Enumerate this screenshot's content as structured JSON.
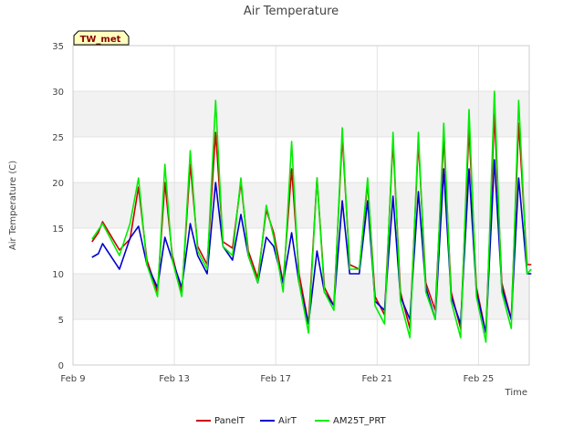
{
  "chart_data": {
    "type": "line",
    "title": "Air Temperature",
    "badge": "TW_met",
    "xlabel": "Time",
    "ylabel": "Air Temperature (C)",
    "ylim": [
      0,
      35
    ],
    "yticks": [
      0,
      5,
      10,
      15,
      20,
      25,
      30,
      35
    ],
    "xlim": [
      "2024-02-09",
      "2024-02-27"
    ],
    "xticks": [
      {
        "date": "2024-02-09",
        "label": "Feb 9"
      },
      {
        "date": "2024-02-13",
        "label": "Feb 13"
      },
      {
        "date": "2024-02-17",
        "label": "Feb 17"
      },
      {
        "date": "2024-02-21",
        "label": "Feb 21"
      },
      {
        "date": "2024-02-25",
        "label": "Feb 25"
      }
    ],
    "grid": true,
    "legend_position": "bottom",
    "series": [
      {
        "name": "PanelT",
        "color": "#cc0000",
        "points": [
          [
            "2024-02-09T18:00",
            13.5
          ],
          [
            "2024-02-10T00:00",
            14.5
          ],
          [
            "2024-02-10T04:00",
            15.7
          ],
          [
            "2024-02-10T20:00",
            12.6
          ],
          [
            "2024-02-11T06:00",
            13.8
          ],
          [
            "2024-02-11T14:00",
            19.5
          ],
          [
            "2024-02-11T22:00",
            11.5
          ],
          [
            "2024-02-12T08:00",
            8.0
          ],
          [
            "2024-02-12T15:00",
            20.0
          ],
          [
            "2024-02-12T22:00",
            12.0
          ],
          [
            "2024-02-13T07:00",
            7.8
          ],
          [
            "2024-02-13T15:00",
            22.0
          ],
          [
            "2024-02-13T22:00",
            13.0
          ],
          [
            "2024-02-14T07:00",
            11.0
          ],
          [
            "2024-02-14T15:00",
            25.5
          ],
          [
            "2024-02-14T22:00",
            13.5
          ],
          [
            "2024-02-15T07:00",
            12.8
          ],
          [
            "2024-02-15T15:00",
            20.0
          ],
          [
            "2024-02-15T22:00",
            12.5
          ],
          [
            "2024-02-16T07:00",
            9.5
          ],
          [
            "2024-02-16T15:00",
            17.0
          ],
          [
            "2024-02-16T22:00",
            14.5
          ],
          [
            "2024-02-17T07:00",
            9.0
          ],
          [
            "2024-02-17T15:00",
            21.5
          ],
          [
            "2024-02-17T22:00",
            10.0
          ],
          [
            "2024-02-18T07:00",
            4.5
          ],
          [
            "2024-02-18T15:00",
            20.5
          ],
          [
            "2024-02-18T22:00",
            8.5
          ],
          [
            "2024-02-19T07:00",
            6.5
          ],
          [
            "2024-02-19T15:00",
            25.0
          ],
          [
            "2024-02-19T22:00",
            11.0
          ],
          [
            "2024-02-20T07:00",
            10.5
          ],
          [
            "2024-02-20T15:00",
            20.0
          ],
          [
            "2024-02-20T22:00",
            7.5
          ],
          [
            "2024-02-21T07:00",
            5.5
          ],
          [
            "2024-02-21T15:00",
            24.5
          ],
          [
            "2024-02-21T22:00",
            8.0
          ],
          [
            "2024-02-22T07:00",
            4.0
          ],
          [
            "2024-02-22T15:00",
            24.5
          ],
          [
            "2024-02-22T22:00",
            9.0
          ],
          [
            "2024-02-23T07:00",
            6.0
          ],
          [
            "2024-02-23T15:00",
            25.0
          ],
          [
            "2024-02-23T22:00",
            8.0
          ],
          [
            "2024-02-24T07:00",
            4.0
          ],
          [
            "2024-02-24T15:00",
            26.0
          ],
          [
            "2024-02-24T22:00",
            8.5
          ],
          [
            "2024-02-25T07:00",
            3.5
          ],
          [
            "2024-02-25T15:00",
            27.5
          ],
          [
            "2024-02-25T22:00",
            9.0
          ],
          [
            "2024-02-26T07:00",
            5.0
          ],
          [
            "2024-02-26T14:00",
            26.5
          ],
          [
            "2024-02-26T22:00",
            11.0
          ],
          [
            "2024-02-27T02:00",
            11.0
          ]
        ]
      },
      {
        "name": "AirT",
        "color": "#0000cc",
        "points": [
          [
            "2024-02-09T18:00",
            11.8
          ],
          [
            "2024-02-10T00:00",
            12.2
          ],
          [
            "2024-02-10T04:00",
            13.3
          ],
          [
            "2024-02-10T20:00",
            10.5
          ],
          [
            "2024-02-11T06:00",
            13.9
          ],
          [
            "2024-02-11T14:00",
            15.2
          ],
          [
            "2024-02-11T22:00",
            11.0
          ],
          [
            "2024-02-12T08:00",
            8.5
          ],
          [
            "2024-02-12T15:00",
            14.0
          ],
          [
            "2024-02-12T22:00",
            11.5
          ],
          [
            "2024-02-13T07:00",
            8.5
          ],
          [
            "2024-02-13T15:00",
            15.5
          ],
          [
            "2024-02-13T22:00",
            12.0
          ],
          [
            "2024-02-14T07:00",
            10.0
          ],
          [
            "2024-02-14T15:00",
            20.0
          ],
          [
            "2024-02-14T22:00",
            13.0
          ],
          [
            "2024-02-15T07:00",
            11.5
          ],
          [
            "2024-02-15T15:00",
            16.5
          ],
          [
            "2024-02-15T22:00",
            12.0
          ],
          [
            "2024-02-16T07:00",
            9.0
          ],
          [
            "2024-02-16T15:00",
            14.0
          ],
          [
            "2024-02-16T22:00",
            13.0
          ],
          [
            "2024-02-17T07:00",
            9.0
          ],
          [
            "2024-02-17T15:00",
            14.5
          ],
          [
            "2024-02-17T22:00",
            9.0
          ],
          [
            "2024-02-18T07:00",
            4.5
          ],
          [
            "2024-02-18T15:00",
            12.5
          ],
          [
            "2024-02-18T22:00",
            8.0
          ],
          [
            "2024-02-19T07:00",
            6.5
          ],
          [
            "2024-02-19T15:00",
            18.0
          ],
          [
            "2024-02-19T22:00",
            10.0
          ],
          [
            "2024-02-20T07:00",
            10.0
          ],
          [
            "2024-02-20T15:00",
            18.0
          ],
          [
            "2024-02-20T22:00",
            7.0
          ],
          [
            "2024-02-21T07:00",
            6.0
          ],
          [
            "2024-02-21T15:00",
            18.5
          ],
          [
            "2024-02-21T22:00",
            7.5
          ],
          [
            "2024-02-22T07:00",
            5.0
          ],
          [
            "2024-02-22T15:00",
            19.0
          ],
          [
            "2024-02-22T22:00",
            8.5
          ],
          [
            "2024-02-23T07:00",
            5.0
          ],
          [
            "2024-02-23T15:00",
            21.5
          ],
          [
            "2024-02-23T22:00",
            7.5
          ],
          [
            "2024-02-24T07:00",
            4.5
          ],
          [
            "2024-02-24T15:00",
            21.5
          ],
          [
            "2024-02-24T22:00",
            8.0
          ],
          [
            "2024-02-25T07:00",
            3.5
          ],
          [
            "2024-02-25T15:00",
            22.5
          ],
          [
            "2024-02-25T22:00",
            8.5
          ],
          [
            "2024-02-26T07:00",
            5.0
          ],
          [
            "2024-02-26T14:00",
            20.5
          ],
          [
            "2024-02-26T22:00",
            10.0
          ],
          [
            "2024-02-27T02:00",
            10.0
          ]
        ]
      },
      {
        "name": "AM25T_PRT",
        "color": "#00ee00",
        "points": [
          [
            "2024-02-09T18:00",
            13.8
          ],
          [
            "2024-02-10T00:00",
            14.8
          ],
          [
            "2024-02-10T04:00",
            15.5
          ],
          [
            "2024-02-10T20:00",
            12.0
          ],
          [
            "2024-02-11T06:00",
            15.5
          ],
          [
            "2024-02-11T14:00",
            20.5
          ],
          [
            "2024-02-11T22:00",
            11.0
          ],
          [
            "2024-02-12T08:00",
            7.5
          ],
          [
            "2024-02-12T15:00",
            22.0
          ],
          [
            "2024-02-12T22:00",
            11.5
          ],
          [
            "2024-02-13T07:00",
            7.5
          ],
          [
            "2024-02-13T15:00",
            23.5
          ],
          [
            "2024-02-13T22:00",
            12.5
          ],
          [
            "2024-02-14T07:00",
            10.5
          ],
          [
            "2024-02-14T15:00",
            29.0
          ],
          [
            "2024-02-14T22:00",
            13.0
          ],
          [
            "2024-02-15T07:00",
            12.0
          ],
          [
            "2024-02-15T15:00",
            20.5
          ],
          [
            "2024-02-15T22:00",
            12.0
          ],
          [
            "2024-02-16T07:00",
            9.0
          ],
          [
            "2024-02-16T15:00",
            17.5
          ],
          [
            "2024-02-16T22:00",
            14.0
          ],
          [
            "2024-02-17T07:00",
            8.0
          ],
          [
            "2024-02-17T15:00",
            24.5
          ],
          [
            "2024-02-17T22:00",
            9.0
          ],
          [
            "2024-02-18T07:00",
            3.5
          ],
          [
            "2024-02-18T15:00",
            20.5
          ],
          [
            "2024-02-18T22:00",
            8.0
          ],
          [
            "2024-02-19T07:00",
            6.0
          ],
          [
            "2024-02-19T15:00",
            26.0
          ],
          [
            "2024-02-19T22:00",
            10.5
          ],
          [
            "2024-02-20T07:00",
            10.5
          ],
          [
            "2024-02-20T15:00",
            20.5
          ],
          [
            "2024-02-20T22:00",
            6.5
          ],
          [
            "2024-02-21T07:00",
            4.5
          ],
          [
            "2024-02-21T15:00",
            25.5
          ],
          [
            "2024-02-21T22:00",
            7.0
          ],
          [
            "2024-02-22T07:00",
            3.0
          ],
          [
            "2024-02-22T15:00",
            25.5
          ],
          [
            "2024-02-22T22:00",
            8.0
          ],
          [
            "2024-02-23T07:00",
            5.0
          ],
          [
            "2024-02-23T15:00",
            26.5
          ],
          [
            "2024-02-23T22:00",
            7.0
          ],
          [
            "2024-02-24T07:00",
            3.0
          ],
          [
            "2024-02-24T15:00",
            28.0
          ],
          [
            "2024-02-24T22:00",
            7.5
          ],
          [
            "2024-02-25T07:00",
            2.5
          ],
          [
            "2024-02-25T15:00",
            30.0
          ],
          [
            "2024-02-25T22:00",
            8.0
          ],
          [
            "2024-02-26T07:00",
            4.0
          ],
          [
            "2024-02-26T14:00",
            29.0
          ],
          [
            "2024-02-26T22:00",
            10.0
          ],
          [
            "2024-02-27T02:00",
            10.5
          ]
        ]
      }
    ]
  }
}
